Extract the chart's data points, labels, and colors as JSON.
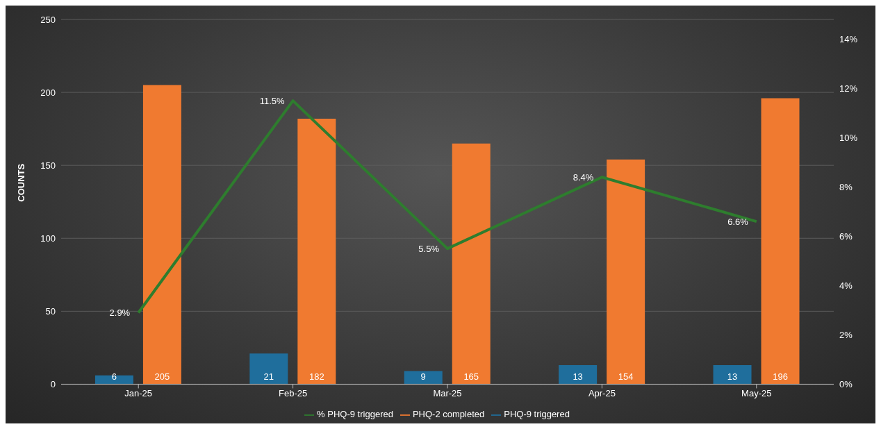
{
  "chart_data": {
    "type": "bar",
    "categories": [
      "Jan-25",
      "Feb-25",
      "Mar-25",
      "Apr-25",
      "May-25"
    ],
    "series": [
      {
        "name": "PHQ-9 triggered",
        "color": "#1f6e9c",
        "values": [
          6,
          21,
          9,
          13,
          13
        ]
      },
      {
        "name": "PHQ-2 completed",
        "color": "#f07a30",
        "values": [
          205,
          182,
          165,
          154,
          196
        ]
      },
      {
        "name": "% PHQ-9 triggered",
        "type": "line",
        "axis": "y2",
        "color": "#2e7d2e",
        "values": [
          2.9,
          11.5,
          5.5,
          8.4,
          6.6
        ],
        "value_labels": [
          "2.9%",
          "11.5%",
          "5.5%",
          "8.4%",
          "6.6%"
        ]
      }
    ],
    "data_labels": true,
    "ylabel": "COUNTS",
    "ylim": [
      0,
      250
    ],
    "yticks": [
      0,
      50,
      100,
      150,
      200,
      250
    ],
    "y2lim": [
      0,
      14.8
    ],
    "y2ticks": [
      {
        "value": 0,
        "label": "0%"
      },
      {
        "value": 2,
        "label": "2%"
      },
      {
        "value": 4,
        "label": "4%"
      },
      {
        "value": 6,
        "label": "6%"
      },
      {
        "value": 8,
        "label": "8%"
      },
      {
        "value": 10,
        "label": "10%"
      },
      {
        "value": 12,
        "label": "12%"
      },
      {
        "value": 14,
        "label": "14%"
      }
    ],
    "grid": "y",
    "legend": "bottom",
    "marker": "none"
  }
}
